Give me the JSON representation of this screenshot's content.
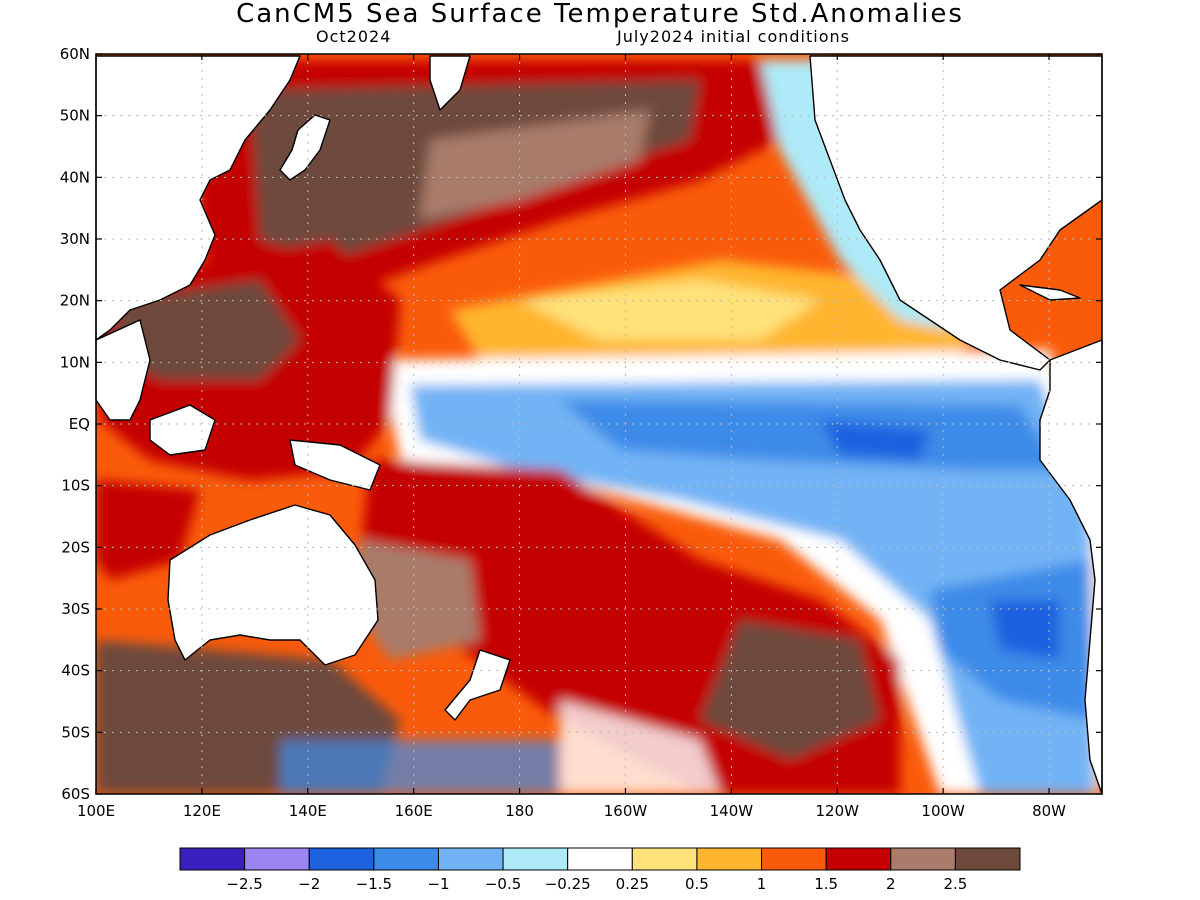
{
  "title": "CanCM5 Sea Surface Temperature Std.Anomalies",
  "subtitle_left": "Oct2024",
  "subtitle_right": "July2024 initial conditions",
  "lat_labels": [
    "60N",
    "50N",
    "40N",
    "30N",
    "20N",
    "10N",
    "EQ",
    "10S",
    "20S",
    "30S",
    "40S",
    "50S",
    "60S"
  ],
  "lon_labels": [
    "100E",
    "120E",
    "140E",
    "160E",
    "180",
    "160W",
    "140W",
    "120W",
    "100W",
    "80W"
  ],
  "colorbar": {
    "colors": [
      "#3a1fbf",
      "#9b85f2",
      "#1f62e0",
      "#3c8be8",
      "#72b3f5",
      "#aeeaf7",
      "#ffffff",
      "#ffe27a",
      "#ffb52e",
      "#fa5b0a",
      "#c40000",
      "#a97c6b",
      "#6e4a3c"
    ],
    "labels": [
      "-2.5",
      "-2",
      "-1.5",
      "-1",
      "-0.5",
      "-0.25",
      "0.25",
      "0.5",
      "1",
      "1.5",
      "2",
      "2.5"
    ]
  },
  "colors": {
    "land": "#ffffff",
    "coast": "#000000",
    "grid": "#bbbbbb"
  }
}
